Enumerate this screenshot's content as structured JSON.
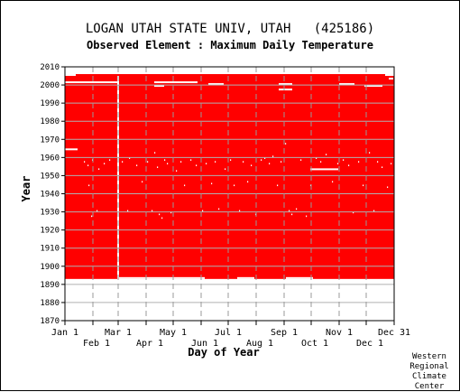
{
  "header": {
    "title": "LOGAN UTAH STATE UNIV, UTAH   (425186)",
    "subtitle": "Observed Element : Maximum Daily Temperature"
  },
  "credit": [
    "Western",
    "Regional",
    "Climate",
    "Center"
  ],
  "chart_data": {
    "type": "heatmap",
    "xlabel": "Day of Year",
    "ylabel": "Year",
    "xlim": [
      1,
      365
    ],
    "ylim": [
      1870,
      2010
    ],
    "yticks": [
      1870,
      1880,
      1890,
      1900,
      1910,
      1920,
      1930,
      1940,
      1950,
      1960,
      1970,
      1980,
      1990,
      2000,
      2010
    ],
    "xticks_top": [
      {
        "label": "Jan 1",
        "day": 1
      },
      {
        "label": "Mar 1",
        "day": 60
      },
      {
        "label": "May 1",
        "day": 121
      },
      {
        "label": "Jul 1",
        "day": 182
      },
      {
        "label": "Sep 1",
        "day": 244
      },
      {
        "label": "Nov 1",
        "day": 305
      },
      {
        "label": "Dec 31",
        "day": 365
      }
    ],
    "xticks_bottom": [
      {
        "label": "Feb 1",
        "day": 32
      },
      {
        "label": "Apr 1",
        "day": 91
      },
      {
        "label": "Jun 1",
        "day": 152
      },
      {
        "label": "Aug 1",
        "day": 213
      },
      {
        "label": "Oct 1",
        "day": 274
      },
      {
        "label": "Dec 1",
        "day": 335
      }
    ],
    "month_starts": [
      32,
      60,
      91,
      121,
      152,
      182,
      213,
      244,
      274,
      305,
      335
    ],
    "grid": true,
    "legend": "none",
    "data_color": "#ff0000",
    "missing_color": "#ffffff",
    "record_start_year": 1893,
    "record_end_year": 2005,
    "missing_periods": [
      {
        "day_start": 1,
        "day_end": 14,
        "year_start": 1964,
        "year_end": 1965
      },
      {
        "day_start": 1,
        "day_end": 58,
        "year_start": 2001,
        "year_end": 2002
      },
      {
        "day_start": 59,
        "day_end": 60,
        "year_start": 1893,
        "year_end": 2005
      },
      {
        "day_start": 100,
        "day_end": 110,
        "year_start": 1999,
        "year_end": 2000
      },
      {
        "day_start": 100,
        "day_end": 124,
        "year_start": 2001,
        "year_end": 2002
      },
      {
        "day_start": 125,
        "day_end": 147,
        "year_start": 2001,
        "year_end": 2002
      },
      {
        "day_start": 160,
        "day_end": 176,
        "year_start": 2000,
        "year_end": 2001
      },
      {
        "day_start": 238,
        "day_end": 252,
        "year_start": 1997,
        "year_end": 1998
      },
      {
        "day_start": 238,
        "day_end": 252,
        "year_start": 2000,
        "year_end": 2001
      },
      {
        "day_start": 273,
        "day_end": 303,
        "year_start": 1953,
        "year_end": 1954
      },
      {
        "day_start": 305,
        "day_end": 321,
        "year_start": 2000,
        "year_end": 2001
      },
      {
        "day_start": 333,
        "day_end": 352,
        "year_start": 1999,
        "year_end": 2000
      },
      {
        "day_start": 360,
        "day_end": 364,
        "year_start": 2003,
        "year_end": 2004
      }
    ],
    "missing_end_1893": [
      {
        "day_start": 61,
        "day_end": 155
      },
      {
        "day_start": 192,
        "day_end": 210
      },
      {
        "day_start": 246,
        "day_end": 275
      }
    ],
    "missing_end_2005": [
      {
        "day_start": 1,
        "day_end": 12
      },
      {
        "day_start": 356,
        "day_end": 365
      }
    ],
    "scattered_missing_days": [
      {
        "day": 22,
        "year": 1957
      },
      {
        "day": 26,
        "year": 1955
      },
      {
        "day": 31,
        "year": 1958
      },
      {
        "day": 38,
        "year": 1953
      },
      {
        "day": 44,
        "year": 1956
      },
      {
        "day": 50,
        "year": 1958
      },
      {
        "day": 27,
        "year": 1944
      },
      {
        "day": 36,
        "year": 1930
      },
      {
        "day": 30,
        "year": 1927
      },
      {
        "day": 64,
        "year": 1957
      },
      {
        "day": 70,
        "year": 1930
      },
      {
        "day": 72,
        "year": 1959
      },
      {
        "day": 80,
        "year": 1955
      },
      {
        "day": 86,
        "year": 1946
      },
      {
        "day": 92,
        "year": 1957
      },
      {
        "day": 97,
        "year": 1930
      },
      {
        "day": 100,
        "year": 1962
      },
      {
        "day": 103,
        "year": 1954
      },
      {
        "day": 105,
        "year": 1928
      },
      {
        "day": 108,
        "year": 1926
      },
      {
        "day": 111,
        "year": 1958
      },
      {
        "day": 114,
        "year": 1956
      },
      {
        "day": 118,
        "year": 1929
      },
      {
        "day": 124,
        "year": 1952
      },
      {
        "day": 129,
        "year": 1957
      },
      {
        "day": 133,
        "year": 1944
      },
      {
        "day": 140,
        "year": 1958
      },
      {
        "day": 146,
        "year": 1955
      },
      {
        "day": 153,
        "year": 1930
      },
      {
        "day": 157,
        "year": 1956
      },
      {
        "day": 163,
        "year": 1945
      },
      {
        "day": 167,
        "year": 1957
      },
      {
        "day": 171,
        "year": 1931
      },
      {
        "day": 178,
        "year": 1953
      },
      {
        "day": 184,
        "year": 1958
      },
      {
        "day": 188,
        "year": 1944
      },
      {
        "day": 194,
        "year": 1930
      },
      {
        "day": 198,
        "year": 1957
      },
      {
        "day": 203,
        "year": 1946
      },
      {
        "day": 207,
        "year": 1955
      },
      {
        "day": 212,
        "year": 1928
      },
      {
        "day": 218,
        "year": 1958
      },
      {
        "day": 222,
        "year": 1959
      },
      {
        "day": 227,
        "year": 1956
      },
      {
        "day": 231,
        "year": 1960
      },
      {
        "day": 236,
        "year": 1944
      },
      {
        "day": 240,
        "year": 1957
      },
      {
        "day": 245,
        "year": 1967
      },
      {
        "day": 249,
        "year": 1930
      },
      {
        "day": 252,
        "year": 1928
      },
      {
        "day": 257,
        "year": 1931
      },
      {
        "day": 262,
        "year": 1958
      },
      {
        "day": 268,
        "year": 1927
      },
      {
        "day": 273,
        "year": 1944
      },
      {
        "day": 279,
        "year": 1959
      },
      {
        "day": 284,
        "year": 1957
      },
      {
        "day": 290,
        "year": 1961
      },
      {
        "day": 297,
        "year": 1946
      },
      {
        "day": 303,
        "year": 1956
      },
      {
        "day": 309,
        "year": 1958
      },
      {
        "day": 315,
        "year": 1955
      },
      {
        "day": 320,
        "year": 1929
      },
      {
        "day": 326,
        "year": 1957
      },
      {
        "day": 331,
        "year": 1944
      },
      {
        "day": 338,
        "year": 1962
      },
      {
        "day": 343,
        "year": 1930
      },
      {
        "day": 347,
        "year": 1957
      },
      {
        "day": 352,
        "year": 1954
      },
      {
        "day": 358,
        "year": 1943
      },
      {
        "day": 362,
        "year": 1956
      }
    ]
  }
}
